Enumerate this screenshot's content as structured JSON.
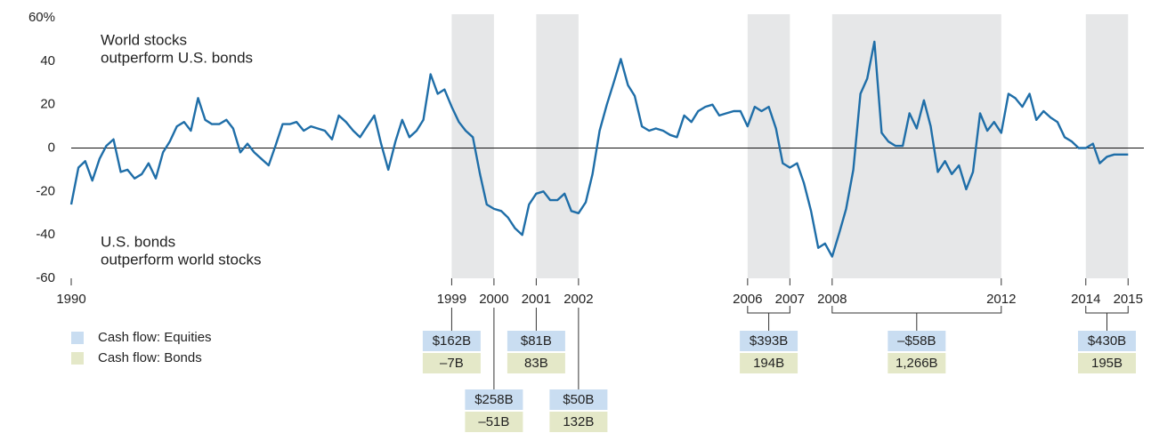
{
  "chart_data": {
    "type": "line",
    "annotations": [
      [
        "World stocks",
        "outperform U.S. bonds"
      ],
      [
        "U.S. bonds",
        "outperform world stocks"
      ]
    ],
    "x": [
      1990,
      1990.17,
      1990.33,
      1990.5,
      1990.67,
      1990.83,
      1991,
      1991.17,
      1991.33,
      1991.5,
      1991.67,
      1991.83,
      1992,
      1992.17,
      1992.33,
      1992.5,
      1992.67,
      1992.83,
      1993,
      1993.17,
      1993.33,
      1993.5,
      1993.67,
      1993.83,
      1994,
      1994.17,
      1994.33,
      1994.5,
      1994.67,
      1994.83,
      1995,
      1995.17,
      1995.33,
      1995.5,
      1995.67,
      1995.83,
      1996,
      1996.17,
      1996.33,
      1996.5,
      1996.67,
      1996.83,
      1997,
      1997.17,
      1997.33,
      1997.5,
      1997.67,
      1997.83,
      1998,
      1998.17,
      1998.33,
      1998.5,
      1998.67,
      1998.83,
      1999,
      1999.17,
      1999.33,
      1999.5,
      1999.67,
      1999.83,
      2000,
      2000.17,
      2000.33,
      2000.5,
      2000.67,
      2000.83,
      2001,
      2001.17,
      2001.33,
      2001.5,
      2001.67,
      2001.83,
      2002,
      2002.17,
      2002.33,
      2002.5,
      2002.67,
      2002.83,
      2003,
      2003.17,
      2003.33,
      2003.5,
      2003.67,
      2003.83,
      2004,
      2004.17,
      2004.33,
      2004.5,
      2004.67,
      2004.83,
      2005,
      2005.17,
      2005.33,
      2005.5,
      2005.67,
      2005.83,
      2006,
      2006.17,
      2006.33,
      2006.5,
      2006.67,
      2006.83,
      2007,
      2007.17,
      2007.33,
      2007.5,
      2007.67,
      2007.83,
      2008,
      2008.17,
      2008.33,
      2008.5,
      2008.67,
      2008.83,
      2009,
      2009.17,
      2009.33,
      2009.5,
      2009.67,
      2009.83,
      2010,
      2010.17,
      2010.33,
      2010.5,
      2010.67,
      2010.83,
      2011,
      2011.17,
      2011.33,
      2011.5,
      2011.67,
      2011.83,
      2012,
      2012.17,
      2012.33,
      2012.5,
      2012.67,
      2012.83,
      2013,
      2013.17,
      2013.33,
      2013.5,
      2013.67,
      2013.83,
      2014,
      2014.17,
      2014.33,
      2014.5,
      2014.67,
      2015
    ],
    "series": [
      {
        "color": "#1f6ea8",
        "values": [
          -26,
          -9,
          -6,
          -15,
          -5,
          1,
          4,
          -11,
          -10,
          -14,
          -12,
          -7,
          -14,
          -2,
          3,
          10,
          12,
          8,
          23,
          13,
          11,
          11,
          13,
          9,
          -2,
          2,
          -2,
          -5,
          -8,
          1,
          11,
          11,
          12,
          8,
          10,
          9,
          8,
          4,
          15,
          12,
          8,
          5,
          10,
          15,
          2,
          -10,
          3,
          13,
          5,
          8,
          13,
          34,
          25,
          27,
          19,
          12,
          8,
          5,
          -12,
          -26,
          -28,
          -29,
          -32,
          -37,
          -40,
          -26,
          -21,
          -20,
          -24,
          -24,
          -21,
          -29,
          -30,
          -25,
          -12,
          8,
          20,
          30,
          41,
          29,
          24,
          10,
          8,
          9,
          8,
          6,
          5,
          15,
          12,
          17,
          19,
          20,
          15,
          16,
          17,
          17,
          10,
          19,
          17,
          19,
          9,
          -7,
          -9,
          -7,
          -16,
          -29,
          -46,
          -44,
          -50,
          -39,
          -28,
          -10,
          25,
          32,
          49,
          7,
          3,
          1,
          1,
          16,
          9,
          22,
          10,
          -11,
          -6,
          -12,
          -8,
          -19,
          -11,
          16,
          8,
          12,
          7,
          25,
          23,
          19,
          25,
          13,
          17,
          14,
          12,
          5,
          3,
          0,
          0,
          2,
          -7,
          -4,
          -3,
          -3
        ]
      }
    ],
    "shaded": [
      [
        1999,
        2000
      ],
      [
        2001,
        2002
      ],
      [
        2006,
        2007
      ],
      [
        2008,
        2012
      ],
      [
        2014,
        2015
      ]
    ],
    "shade_color": "#e6e7e8",
    "xlim": [
      1990,
      2015.5
    ],
    "xticks": [
      1990,
      1999,
      2000,
      2001,
      2002,
      2006,
      2007,
      2008,
      2012,
      2014,
      2015
    ],
    "ylim": [
      -60,
      60
    ],
    "yticks": [
      -60,
      -40,
      -20,
      0,
      20,
      40,
      {
        "value": 60,
        "label": "60%"
      }
    ],
    "zero_line": true,
    "legend": [
      {
        "name": "Cash flow: Equities",
        "color": "#c9ddf1"
      },
      {
        "name": "Cash flow: Bonds",
        "color": "#e4e8c8"
      }
    ],
    "flows": [
      {
        "years": [
          1999
        ],
        "equities": "$162B",
        "bonds": "–7B"
      },
      {
        "years": [
          2000
        ],
        "equities": "$258B",
        "bonds": "–51B"
      },
      {
        "years": [
          2001
        ],
        "equities": "$81B",
        "bonds": "83B"
      },
      {
        "years": [
          2002
        ],
        "equities": "$50B",
        "bonds": "132B"
      },
      {
        "years": [
          2006,
          2007
        ],
        "equities": "$393B",
        "bonds": "194B"
      },
      {
        "years": [
          2008,
          2012
        ],
        "equities": "–$58B",
        "bonds": "1,266B"
      },
      {
        "years": [
          2014,
          2015
        ],
        "equities": "$430B",
        "bonds": "195B"
      }
    ]
  }
}
